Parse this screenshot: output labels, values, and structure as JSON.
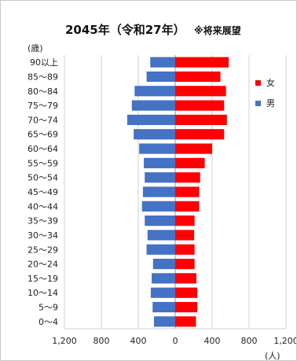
{
  "chart_data": {
    "type": "bar",
    "orientation": "horizontal",
    "layout": "population-pyramid",
    "title": "2045年（令和27年）",
    "subtitle": "※将来展望",
    "ylabel": "(歳)",
    "xlabel": "(人)",
    "xlim": [
      -1200,
      1200
    ],
    "xticks": [
      -1200,
      -800,
      -400,
      0,
      400,
      800,
      1200
    ],
    "xtick_labels": [
      "1,200",
      "800",
      "400",
      "0",
      "400",
      "800",
      "1,200"
    ],
    "grid": true,
    "legend_position": "right",
    "categories": [
      "90以上",
      "85～89",
      "80～84",
      "75～79",
      "70～74",
      "65～69",
      "60～64",
      "55～59",
      "50～54",
      "45～49",
      "40～44",
      "35～39",
      "30～34",
      "25～29",
      "20～24",
      "15～19",
      "10～14",
      "5～9",
      "0～4"
    ],
    "series": [
      {
        "name": "女",
        "side": "right",
        "color": "#ff0000",
        "values": [
          580,
          490,
          550,
          530,
          560,
          530,
          400,
          320,
          270,
          260,
          260,
          210,
          205,
          210,
          210,
          230,
          240,
          240,
          225
        ]
      },
      {
        "name": "男",
        "side": "left",
        "color": "#4472c4",
        "values": [
          270,
          310,
          440,
          470,
          520,
          450,
          390,
          340,
          330,
          350,
          360,
          330,
          300,
          310,
          240,
          255,
          265,
          245,
          230
        ]
      }
    ]
  }
}
